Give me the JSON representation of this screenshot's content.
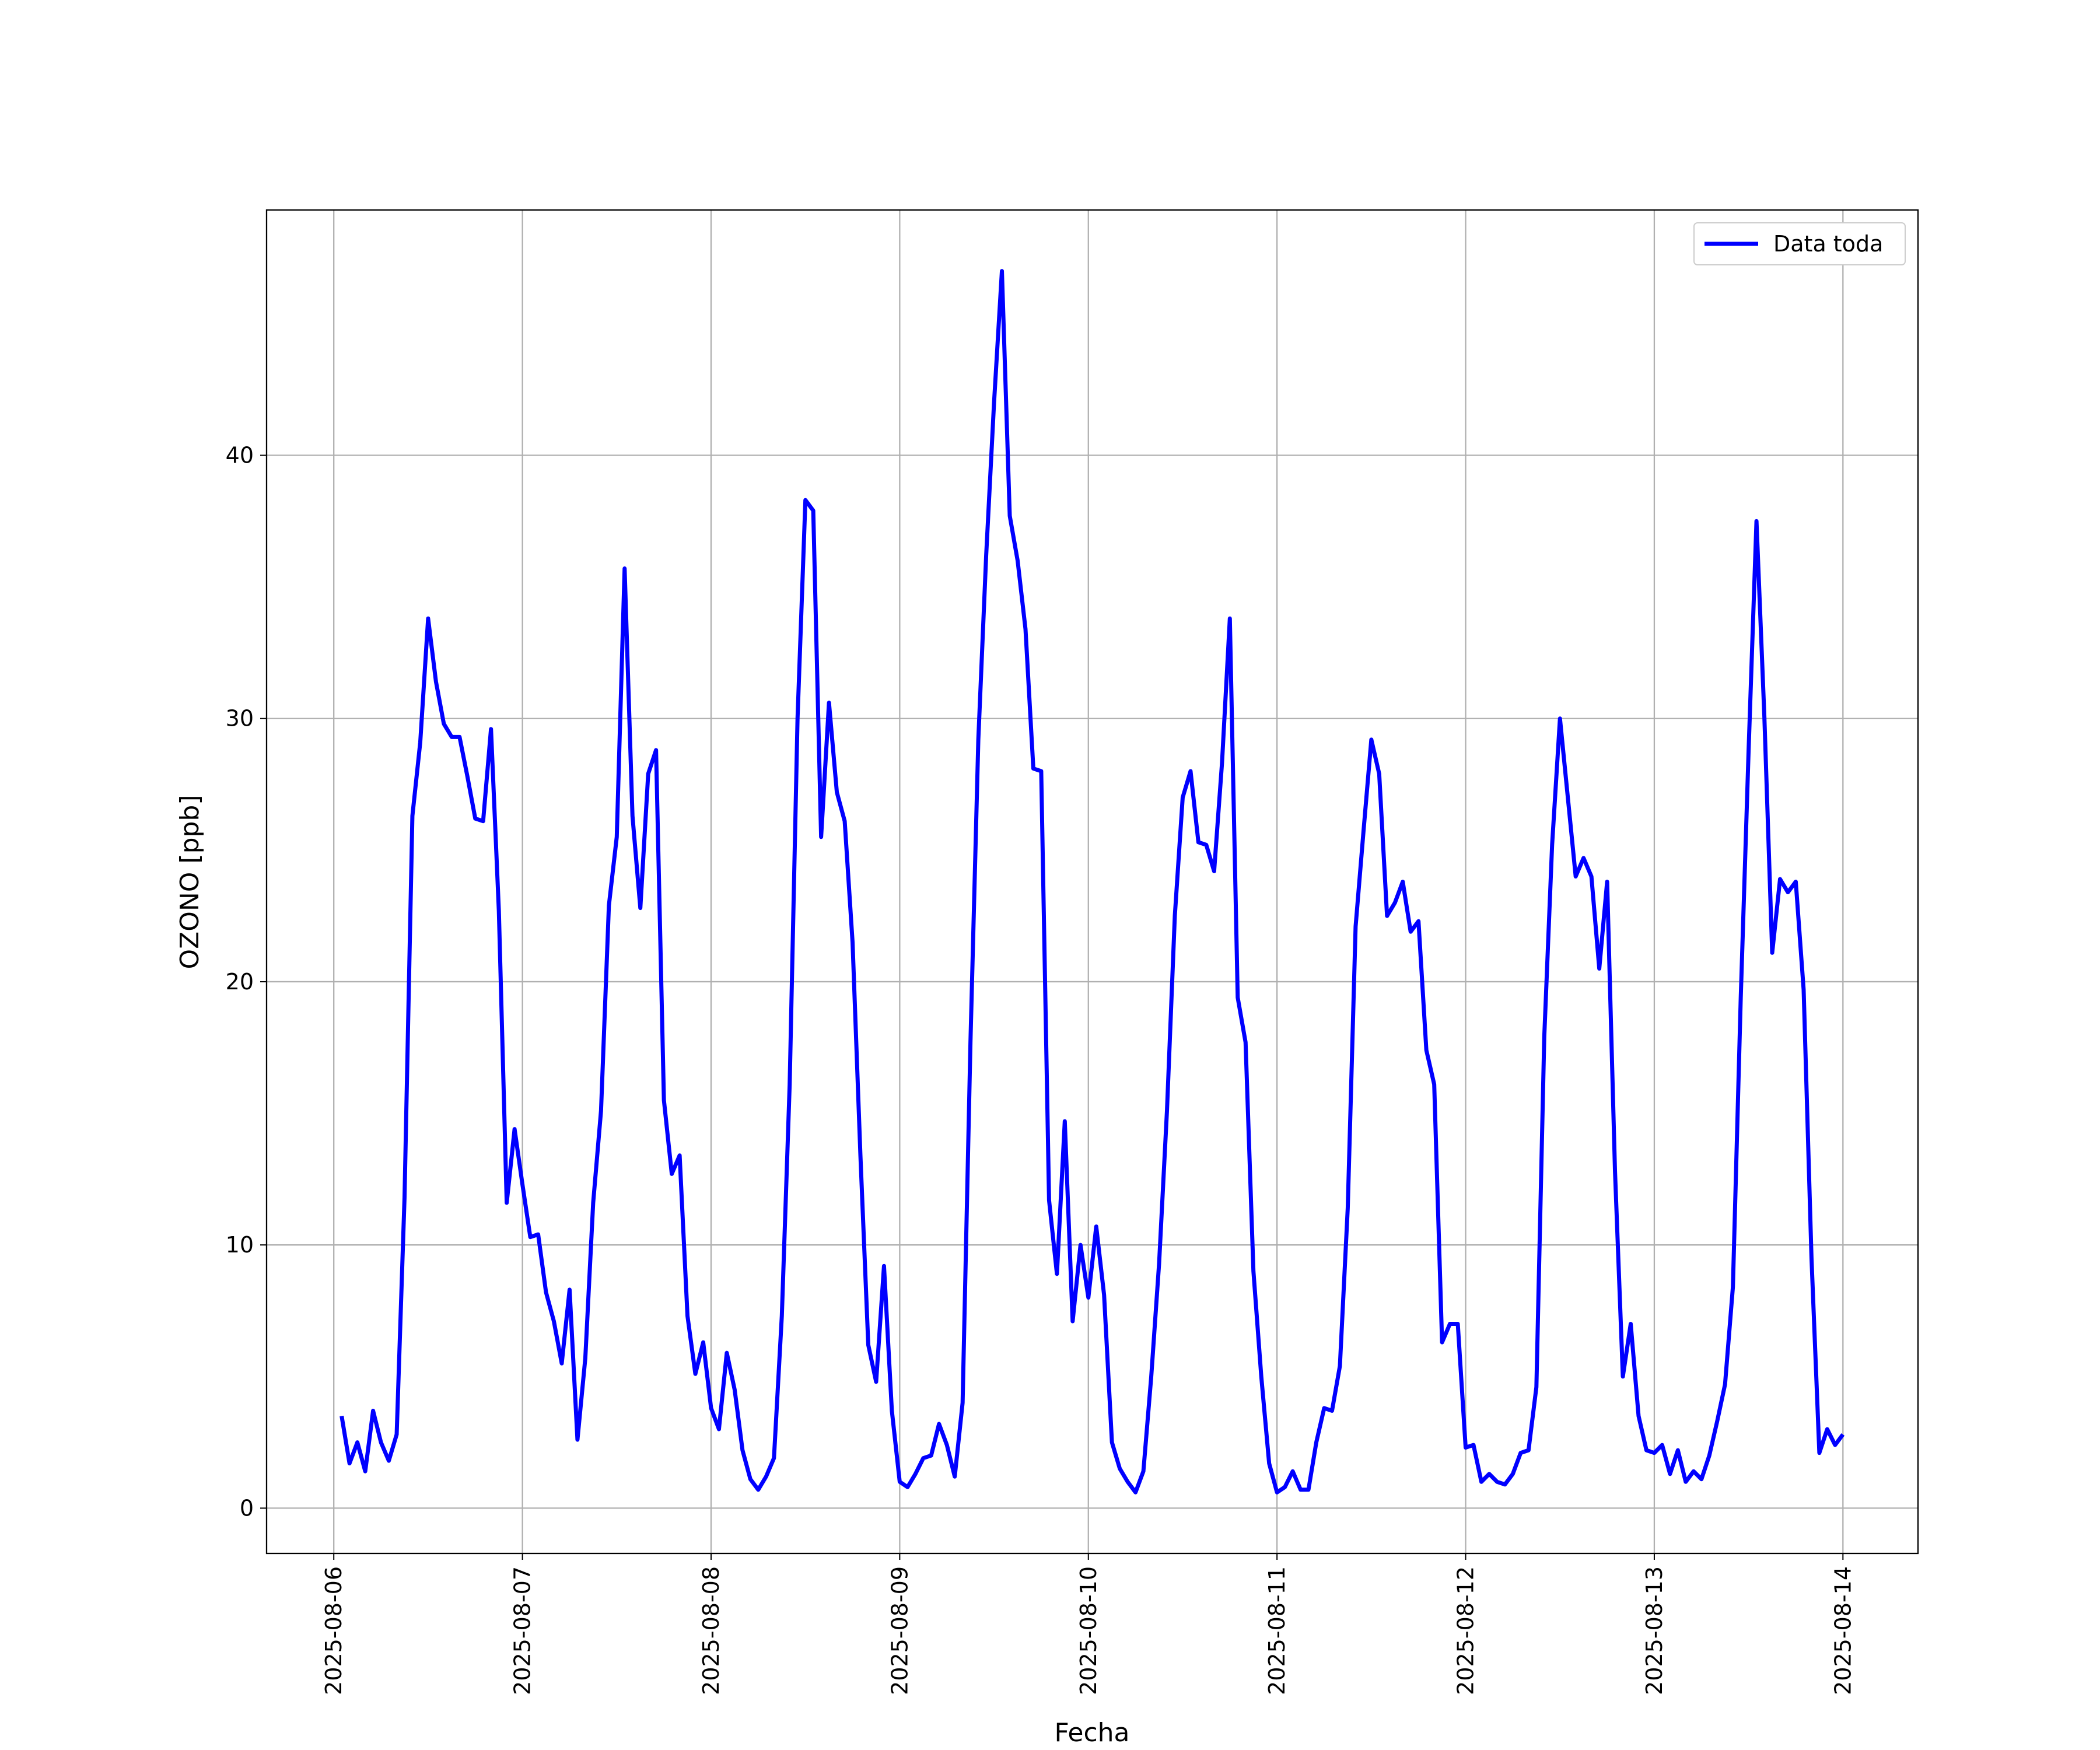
{
  "chart_data": {
    "type": "line",
    "xlabel": "Fecha",
    "ylabel": "OZONO [ppb]",
    "x": [
      "2025-08-06 01:00",
      "2025-08-06 02:00",
      "2025-08-06 03:00",
      "2025-08-06 04:00",
      "2025-08-06 05:00",
      "2025-08-06 06:00",
      "2025-08-06 07:00",
      "2025-08-06 08:00",
      "2025-08-06 09:00",
      "2025-08-06 10:00",
      "2025-08-06 11:00",
      "2025-08-06 12:00",
      "2025-08-06 13:00",
      "2025-08-06 14:00",
      "2025-08-06 15:00",
      "2025-08-06 16:00",
      "2025-08-06 17:00",
      "2025-08-06 18:00",
      "2025-08-06 19:00",
      "2025-08-06 20:00",
      "2025-08-06 21:00",
      "2025-08-06 22:00",
      "2025-08-06 23:00",
      "2025-08-07 00:00",
      "2025-08-07 01:00",
      "2025-08-07 02:00",
      "2025-08-07 03:00",
      "2025-08-07 04:00",
      "2025-08-07 05:00",
      "2025-08-07 06:00",
      "2025-08-07 07:00",
      "2025-08-07 08:00",
      "2025-08-07 09:00",
      "2025-08-07 10:00",
      "2025-08-07 11:00",
      "2025-08-07 12:00",
      "2025-08-07 13:00",
      "2025-08-07 14:00",
      "2025-08-07 15:00",
      "2025-08-07 16:00",
      "2025-08-07 17:00",
      "2025-08-07 18:00",
      "2025-08-07 19:00",
      "2025-08-07 20:00",
      "2025-08-07 21:00",
      "2025-08-07 22:00",
      "2025-08-07 23:00",
      "2025-08-08 00:00",
      "2025-08-08 01:00",
      "2025-08-08 02:00",
      "2025-08-08 03:00",
      "2025-08-08 04:00",
      "2025-08-08 05:00",
      "2025-08-08 06:00",
      "2025-08-08 07:00",
      "2025-08-08 08:00",
      "2025-08-08 09:00",
      "2025-08-08 10:00",
      "2025-08-08 11:00",
      "2025-08-08 12:00",
      "2025-08-08 13:00",
      "2025-08-08 14:00",
      "2025-08-08 15:00",
      "2025-08-08 16:00",
      "2025-08-08 17:00",
      "2025-08-08 18:00",
      "2025-08-08 19:00",
      "2025-08-08 20:00",
      "2025-08-08 21:00",
      "2025-08-08 22:00",
      "2025-08-08 23:00",
      "2025-08-09 00:00",
      "2025-08-09 01:00",
      "2025-08-09 02:00",
      "2025-08-09 03:00",
      "2025-08-09 04:00",
      "2025-08-09 05:00",
      "2025-08-09 06:00",
      "2025-08-09 07:00",
      "2025-08-09 08:00",
      "2025-08-09 09:00",
      "2025-08-09 10:00",
      "2025-08-09 11:00",
      "2025-08-09 12:00",
      "2025-08-09 13:00",
      "2025-08-09 14:00",
      "2025-08-09 15:00",
      "2025-08-09 16:00",
      "2025-08-09 17:00",
      "2025-08-09 18:00",
      "2025-08-09 19:00",
      "2025-08-09 20:00",
      "2025-08-09 21:00",
      "2025-08-09 22:00",
      "2025-08-09 23:00",
      "2025-08-10 00:00",
      "2025-08-10 01:00",
      "2025-08-10 02:00",
      "2025-08-10 03:00",
      "2025-08-10 04:00",
      "2025-08-10 05:00",
      "2025-08-10 06:00",
      "2025-08-10 07:00",
      "2025-08-10 08:00",
      "2025-08-10 09:00",
      "2025-08-10 10:00",
      "2025-08-10 11:00",
      "2025-08-10 12:00",
      "2025-08-10 13:00",
      "2025-08-10 14:00",
      "2025-08-10 15:00",
      "2025-08-10 16:00",
      "2025-08-10 17:00",
      "2025-08-10 18:00",
      "2025-08-10 19:00",
      "2025-08-10 20:00",
      "2025-08-10 21:00",
      "2025-08-10 22:00",
      "2025-08-10 23:00",
      "2025-08-11 00:00",
      "2025-08-11 01:00",
      "2025-08-11 02:00",
      "2025-08-11 03:00",
      "2025-08-11 04:00",
      "2025-08-11 05:00",
      "2025-08-11 06:00",
      "2025-08-11 07:00",
      "2025-08-11 08:00",
      "2025-08-11 09:00",
      "2025-08-11 10:00",
      "2025-08-11 11:00",
      "2025-08-11 12:00",
      "2025-08-11 13:00",
      "2025-08-11 14:00",
      "2025-08-11 15:00",
      "2025-08-11 16:00",
      "2025-08-11 17:00",
      "2025-08-11 18:00",
      "2025-08-11 19:00",
      "2025-08-11 20:00",
      "2025-08-11 21:00",
      "2025-08-11 22:00",
      "2025-08-11 23:00",
      "2025-08-12 00:00",
      "2025-08-12 01:00",
      "2025-08-12 02:00",
      "2025-08-12 03:00",
      "2025-08-12 04:00",
      "2025-08-12 05:00",
      "2025-08-12 06:00",
      "2025-08-12 07:00",
      "2025-08-12 08:00",
      "2025-08-12 09:00",
      "2025-08-12 10:00",
      "2025-08-12 11:00",
      "2025-08-12 12:00",
      "2025-08-12 13:00",
      "2025-08-12 14:00",
      "2025-08-12 15:00",
      "2025-08-12 16:00",
      "2025-08-12 17:00",
      "2025-08-12 18:00",
      "2025-08-12 19:00",
      "2025-08-12 20:00",
      "2025-08-12 21:00",
      "2025-08-12 22:00",
      "2025-08-12 23:00",
      "2025-08-13 00:00",
      "2025-08-13 01:00",
      "2025-08-13 02:00",
      "2025-08-13 03:00",
      "2025-08-13 04:00",
      "2025-08-13 05:00",
      "2025-08-13 06:00",
      "2025-08-13 07:00",
      "2025-08-13 08:00",
      "2025-08-13 09:00",
      "2025-08-13 10:00",
      "2025-08-13 11:00",
      "2025-08-13 12:00",
      "2025-08-13 13:00",
      "2025-08-13 14:00",
      "2025-08-13 15:00",
      "2025-08-13 16:00",
      "2025-08-13 17:00",
      "2025-08-13 18:00",
      "2025-08-13 19:00",
      "2025-08-13 20:00",
      "2025-08-13 21:00",
      "2025-08-13 22:00",
      "2025-08-13 23:00",
      "2025-08-14 00:00"
    ],
    "series": [
      {
        "name": "Data toda",
        "color": "#0000ff",
        "values": [
          3.5,
          1.7,
          2.5,
          1.4,
          3.7,
          2.5,
          1.8,
          2.8,
          11.8,
          26.3,
          29.1,
          33.8,
          31.4,
          29.8,
          29.3,
          29.3,
          27.8,
          26.2,
          26.1,
          29.6,
          22.7,
          11.6,
          14.4,
          12.3,
          10.3,
          10.4,
          8.2,
          7.1,
          5.5,
          8.3,
          2.6,
          5.7,
          11.6,
          15.1,
          22.9,
          25.5,
          35.7,
          26.3,
          22.8,
          27.9,
          28.8,
          15.5,
          12.7,
          13.4,
          7.3,
          5.1,
          6.3,
          3.8,
          3.0,
          5.9,
          4.5,
          2.2,
          1.1,
          0.7,
          1.2,
          1.9,
          7.3,
          16.1,
          30.0,
          38.3,
          37.9,
          25.5,
          30.6,
          27.2,
          26.1,
          21.5,
          13.4,
          6.2,
          4.8,
          9.2,
          3.7,
          1.0,
          0.8,
          1.3,
          1.9,
          2.0,
          3.2,
          2.4,
          1.2,
          4.0,
          17.7,
          29.2,
          36.2,
          42.0,
          47.0,
          37.7,
          36.0,
          33.4,
          28.1,
          28.0,
          11.7,
          8.9,
          14.7,
          7.1,
          10.0,
          8.0,
          10.7,
          8.1,
          2.5,
          1.5,
          1.0,
          0.6,
          1.4,
          5.0,
          9.3,
          15.1,
          22.5,
          27.0,
          28.0,
          25.3,
          25.2,
          24.2,
          28.3,
          33.8,
          19.4,
          17.7,
          9.0,
          5.0,
          1.7,
          0.6,
          0.8,
          1.4,
          0.7,
          0.7,
          2.5,
          3.8,
          3.7,
          5.4,
          11.4,
          22.1,
          25.7,
          29.2,
          27.9,
          22.5,
          23.0,
          23.8,
          21.9,
          22.3,
          17.4,
          16.1,
          6.3,
          7.0,
          7.0,
          2.3,
          2.4,
          1.0,
          1.3,
          1.0,
          0.9,
          1.3,
          2.1,
          2.2,
          4.6,
          17.9,
          25.2,
          30.0,
          27.0,
          24.0,
          24.7,
          24.0,
          20.5,
          23.8,
          12.8,
          5.0,
          7.0,
          3.5,
          2.2,
          2.1,
          2.4,
          1.3,
          2.2,
          1.0,
          1.4,
          1.1,
          2.0,
          3.3,
          4.7,
          8.4,
          19.4,
          28.8,
          37.5,
          30.1,
          21.1,
          23.9,
          23.4,
          23.8,
          19.7,
          9.5,
          2.1,
          3.0,
          2.4,
          2.8
        ]
      }
    ],
    "xlim": [
      "2025-08-05 15:27",
      "2025-08-14 09:33"
    ],
    "xticks": [
      "2025-08-06",
      "2025-08-07",
      "2025-08-08",
      "2025-08-09",
      "2025-08-10",
      "2025-08-11",
      "2025-08-12",
      "2025-08-13",
      "2025-08-14"
    ],
    "ylim": [
      -1.72,
      49.32
    ],
    "yticks": [
      0,
      10,
      20,
      30,
      40
    ],
    "grid": true,
    "legend": "upper right"
  }
}
